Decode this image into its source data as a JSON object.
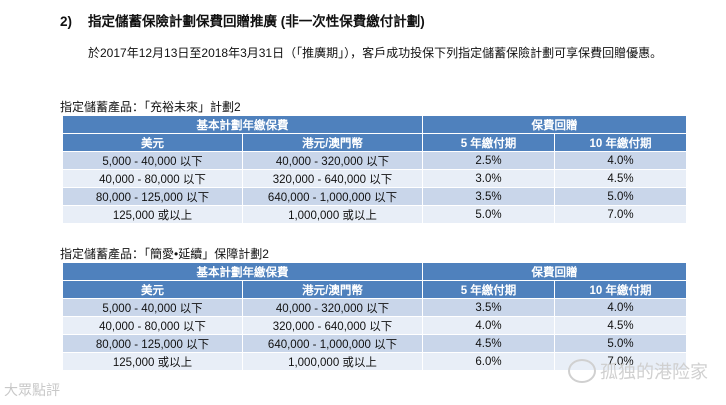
{
  "heading": {
    "number": "2)",
    "title": "指定儲蓄保險計劃保費回贈推廣 (非一次性保費繳付計劃)"
  },
  "intro": "於2017年12月13日至2018年3月31日（「推廣期」），客戶成功投保下列指定儲蓄保險計劃可享保費回贈優惠。",
  "plans": [
    {
      "label": "指定儲蓄產品：「充裕未來」計劃2",
      "header": {
        "group1": "基本計劃年繳保費",
        "group2": "保費回贈",
        "col1": "美元",
        "col2": "港元/澳門幣",
        "col3": "5 年繳付期",
        "col4": "10 年繳付期"
      },
      "rows": [
        {
          "usd": "5,000 - 40,000 以下",
          "hkd": "40,000 - 320,000 以下",
          "r5": "2.5%",
          "r10": "4.0%"
        },
        {
          "usd": "40,000 - 80,000 以下",
          "hkd": "320,000 - 640,000 以下",
          "r5": "3.0%",
          "r10": "4.5%"
        },
        {
          "usd": "80,000 - 125,000 以下",
          "hkd": "640,000 - 1,000,000 以下",
          "r5": "3.5%",
          "r10": "5.0%"
        },
        {
          "usd": "125,000 或以上",
          "hkd": "1,000,000 或以上",
          "r5": "5.0%",
          "r10": "7.0%"
        }
      ]
    },
    {
      "label": "指定儲蓄產品：「簡愛•延續」保障計劃2",
      "header": {
        "group1": "基本計劃年繳保費",
        "group2": "保費回贈",
        "col1": "美元",
        "col2": "港元/澳門幣",
        "col3": "5 年繳付期",
        "col4": "10 年繳付期"
      },
      "rows": [
        {
          "usd": "5,000 - 40,000 以下",
          "hkd": "40,000 - 320,000 以下",
          "r5": "3.5%",
          "r10": "4.0%"
        },
        {
          "usd": "40,000 - 80,000 以下",
          "hkd": "320,000 - 640,000 以下",
          "r5": "4.0%",
          "r10": "4.5%"
        },
        {
          "usd": "80,000 - 125,000 以下",
          "hkd": "640,000 - 1,000,000 以下",
          "r5": "4.5%",
          "r10": "5.0%"
        },
        {
          "usd": "125,000 或以上",
          "hkd": "1,000,000 或以上",
          "r5": "6.0%",
          "r10": "7.0%"
        }
      ]
    }
  ],
  "watermarks": {
    "left": "大眾點評",
    "right": "孤独的港险家"
  }
}
